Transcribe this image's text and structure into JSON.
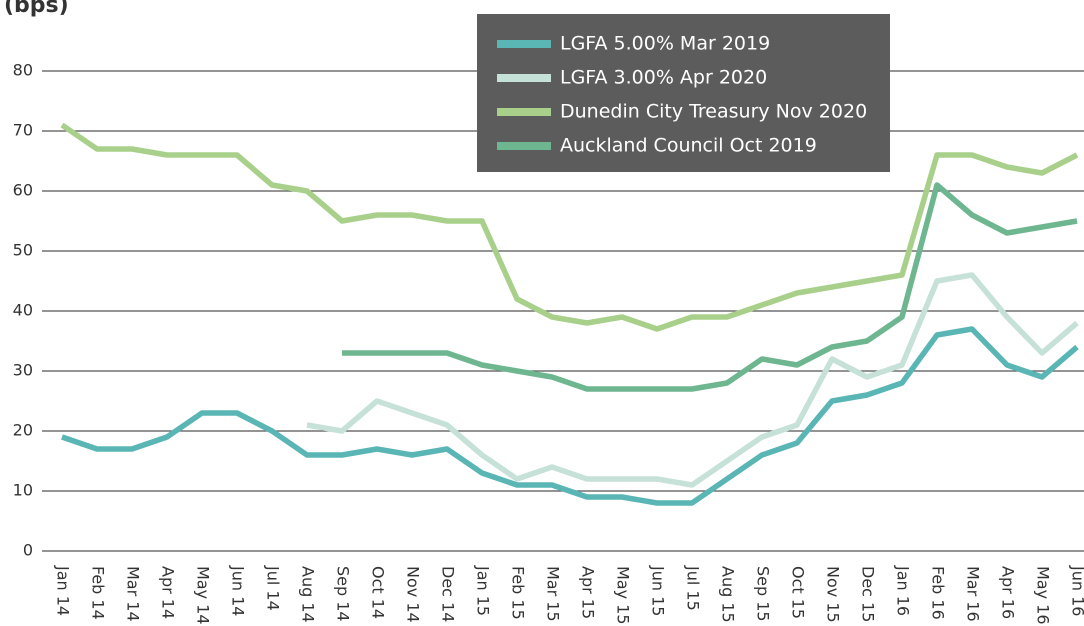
{
  "chart_data": {
    "type": "line",
    "y_label": "(bps)",
    "categories": [
      "Jan 14",
      "Feb 14",
      "Mar 14",
      "Apr 14",
      "May 14",
      "Jun 14",
      "Jul 14",
      "Aug 14",
      "Sep 14",
      "Oct 14",
      "Nov 14",
      "Dec 14",
      "Jan 15",
      "Feb 15",
      "Mar 15",
      "Apr 15",
      "May 15",
      "Jun 15",
      "Jul 15",
      "Aug 15",
      "Sep 15",
      "Oct 15",
      "Nov 15",
      "Dec 15",
      "Jan 16",
      "Feb 16",
      "Mar 16",
      "Apr 16",
      "May 16",
      "Jun 16"
    ],
    "series": [
      {
        "name": "LGFA 5.00% Mar 2019",
        "color": "#5ab5b5",
        "values": [
          19,
          17,
          17,
          19,
          23,
          23,
          20,
          16,
          16,
          17,
          16,
          17,
          13,
          11,
          11,
          9,
          9,
          8,
          8,
          12,
          16,
          18,
          25,
          26,
          28,
          36,
          37,
          31,
          29,
          34
        ]
      },
      {
        "name": "LGFA 3.00% Apr 2020",
        "color": "#c6e1d7",
        "values": [
          null,
          null,
          null,
          null,
          null,
          null,
          null,
          21,
          20,
          25,
          23,
          21,
          16,
          12,
          14,
          12,
          12,
          12,
          11,
          15,
          19,
          21,
          32,
          29,
          31,
          45,
          46,
          39,
          33,
          38
        ]
      },
      {
        "name": "Dunedin City Treasury Nov 2020",
        "color": "#a8d08b",
        "values": [
          71,
          67,
          67,
          66,
          66,
          66,
          61,
          60,
          55,
          56,
          56,
          55,
          55,
          42,
          39,
          38,
          39,
          37,
          39,
          39,
          41,
          43,
          44,
          45,
          46,
          66,
          66,
          64,
          63,
          66
        ]
      },
      {
        "name": "Auckland Council Oct 2019",
        "color": "#6db68f",
        "values": [
          null,
          null,
          null,
          null,
          null,
          null,
          null,
          null,
          33,
          33,
          33,
          33,
          31,
          30,
          29,
          27,
          27,
          27,
          27,
          28,
          32,
          31,
          34,
          35,
          39,
          61,
          56,
          53,
          54,
          55
        ]
      }
    ],
    "ylim": [
      0,
      80
    ],
    "yticks": [
      0,
      10,
      20,
      30,
      40,
      50,
      60,
      70,
      80
    ],
    "grid": true,
    "legend": "top-right"
  }
}
